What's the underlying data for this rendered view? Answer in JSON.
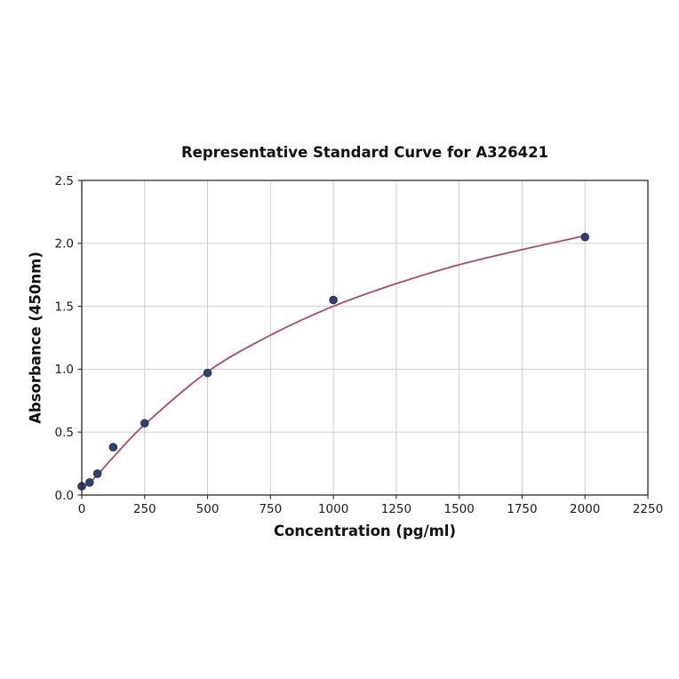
{
  "chart_data": {
    "type": "scatter",
    "title": "Representative Standard Curve for A326421",
    "xlabel": "Concentration (pg/ml)",
    "ylabel": "Absorbance (450nm)",
    "xlim": [
      0,
      2250
    ],
    "ylim": [
      0,
      2.5
    ],
    "x_ticks": [
      0,
      250,
      500,
      750,
      1000,
      1250,
      1500,
      1750,
      2000,
      2250
    ],
    "x_tick_labels": [
      "0",
      "250",
      "500",
      "750",
      "1000",
      "1250",
      "1500",
      "1750",
      "2000",
      "2250"
    ],
    "y_ticks": [
      0.0,
      0.5,
      1.0,
      1.5,
      2.0,
      2.5
    ],
    "y_tick_labels": [
      "0.0",
      "0.5",
      "1.0",
      "1.5",
      "2.0",
      "2.5"
    ],
    "grid": true,
    "legend": "none",
    "points": {
      "x": [
        0,
        31.25,
        62.5,
        125,
        250,
        500,
        1000,
        2000
      ],
      "y": [
        0.07,
        0.1,
        0.17,
        0.38,
        0.57,
        0.97,
        1.55,
        2.05
      ]
    },
    "fit_curve": {
      "x": [
        0,
        31.25,
        62.5,
        125,
        250,
        500,
        750,
        1000,
        1250,
        1500,
        1750,
        2000
      ],
      "y": [
        0.05,
        0.1,
        0.16,
        0.3,
        0.56,
        0.98,
        1.27,
        1.5,
        1.68,
        1.83,
        1.95,
        2.06
      ]
    },
    "point_color": "#2e4172",
    "point_edge_color": "#22335e",
    "curve_color": "#b0486e",
    "grid_color": "#c9c9c9",
    "axis_color": "#2a2a2a"
  }
}
